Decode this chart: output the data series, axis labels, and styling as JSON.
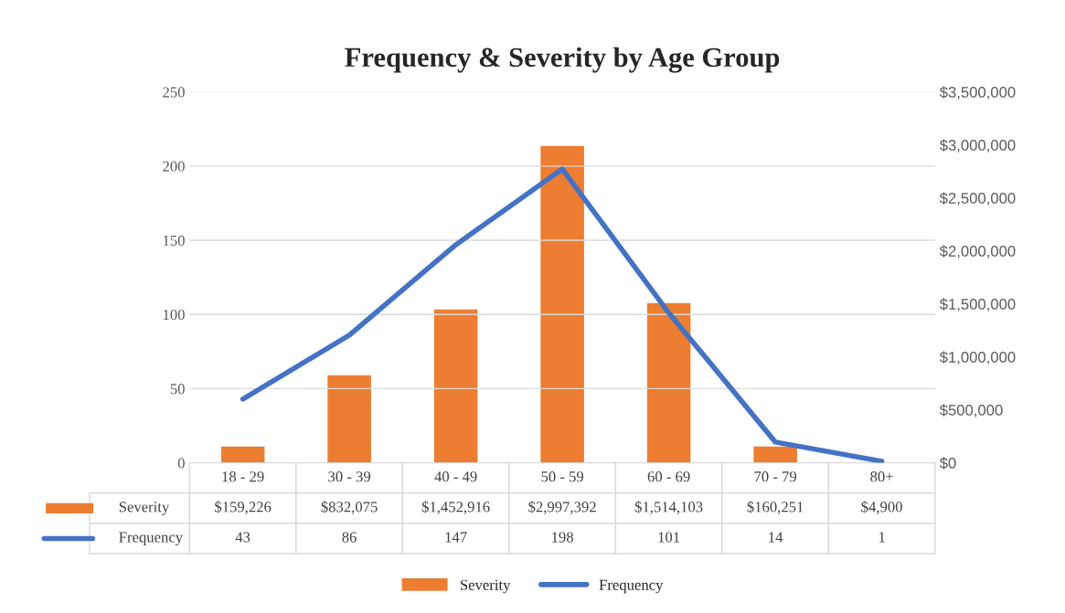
{
  "chart_data": {
    "type": "bar",
    "title": "Frequency & Severity by Age Group",
    "categories": [
      "18 - 29",
      "30 - 39",
      "40 - 49",
      "50 - 59",
      "60 - 69",
      "70 - 79",
      "80+"
    ],
    "series": [
      {
        "name": "Severity",
        "axis": "y2",
        "color": "#ed7d31",
        "values": [
          159226,
          832075,
          1452916,
          2997392,
          1514103,
          160251,
          4900
        ],
        "value_labels": [
          "$159,226",
          "$832,075",
          "$1,452,916",
          "$2,997,392",
          "$1,514,103",
          "$160,251",
          "$4,900"
        ]
      },
      {
        "name": "Frequency",
        "type": "line",
        "axis": "y",
        "color": "#4472c4",
        "values": [
          43,
          86,
          147,
          198,
          101,
          14,
          1
        ]
      }
    ],
    "ylim": [
      0,
      250
    ],
    "yticks": [
      0,
      50,
      100,
      150,
      200,
      250
    ],
    "y2lim": [
      0,
      3500000
    ],
    "y2ticks": [
      {
        "value": 0,
        "label": "$0"
      },
      {
        "value": 500000,
        "label": "$500,000"
      },
      {
        "value": 1000000,
        "label": "$1,000,000"
      },
      {
        "value": 1500000,
        "label": "$1,500,000"
      },
      {
        "value": 2000000,
        "label": "$2,000,000"
      },
      {
        "value": 2500000,
        "label": "$2,500,000"
      },
      {
        "value": 3000000,
        "label": "$3,000,000"
      },
      {
        "value": 3500000,
        "label": "$3,500,000"
      }
    ],
    "grid": "y",
    "legend": "bottom",
    "data_labels": true,
    "marker": "none",
    "line_style": "solid"
  }
}
